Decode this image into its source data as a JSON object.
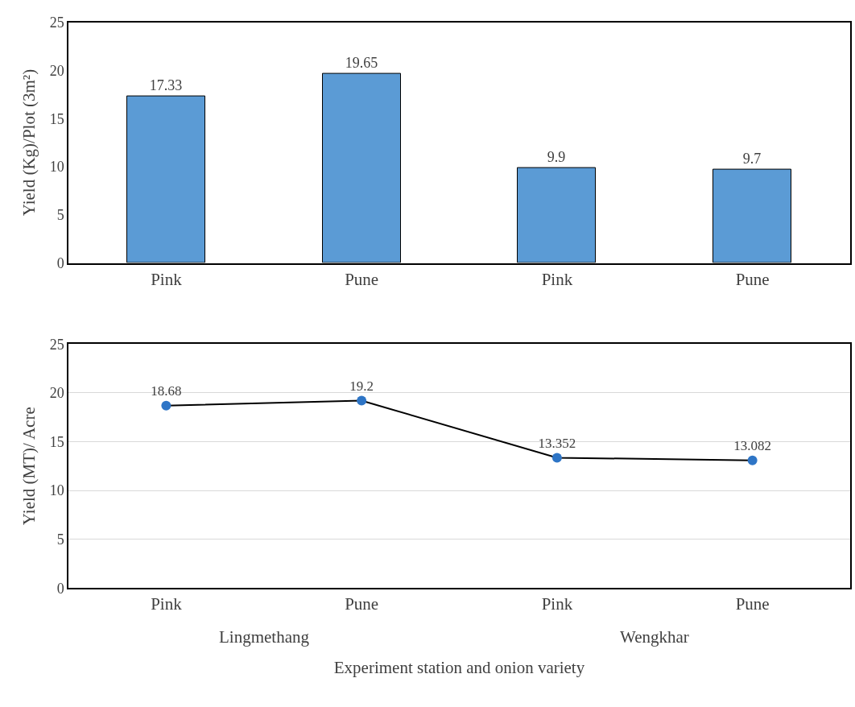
{
  "chart_data": [
    {
      "type": "bar",
      "ylabel": "Yield (Kg)/Plot (3m²)",
      "categories": [
        "Pink",
        "Pune",
        "Pink",
        "Pune"
      ],
      "values": [
        17.33,
        19.65,
        9.9,
        9.7
      ],
      "color": "#5b9bd5",
      "ylim": [
        0,
        25
      ],
      "yticks": [
        0,
        5,
        10,
        15,
        20,
        25
      ],
      "grid": false,
      "data_labels": true
    },
    {
      "type": "line",
      "ylabel": "Yield (MT)/ Acre",
      "xlabel": "Experiment station and onion variety",
      "categories": [
        "Pink",
        "Pune",
        "Pink",
        "Pune"
      ],
      "values": [
        18.68,
        19.2,
        13.352,
        13.082
      ],
      "color": "#2e75c6",
      "marker": "circle",
      "ylim": [
        0,
        25
      ],
      "yticks": [
        0,
        5,
        10,
        15,
        20,
        25
      ],
      "grid": "y",
      "data_labels": true,
      "annotations": [
        "Lingmethang",
        "Wengkhar"
      ]
    }
  ]
}
